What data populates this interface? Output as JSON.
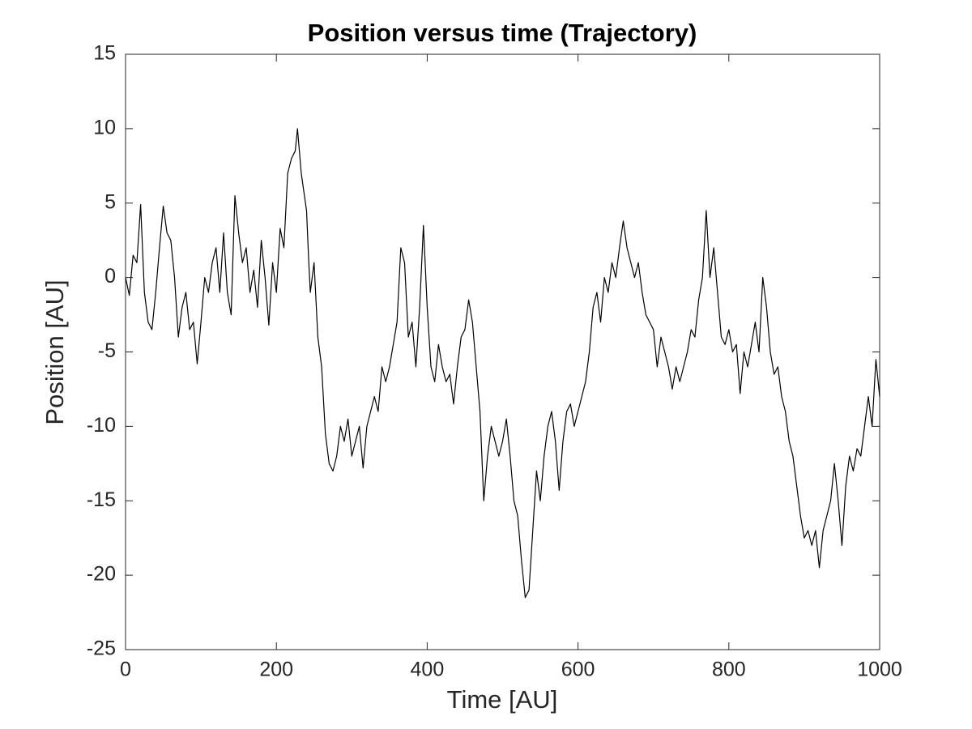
{
  "chart_data": {
    "type": "line",
    "title": "Position versus time (Trajectory)",
    "x_label": "Time [AU]",
    "y_label": "Position [AU]",
    "xlim": [
      0,
      1000
    ],
    "ylim": [
      -25,
      15
    ],
    "xticks": [
      0,
      200,
      400,
      600,
      800,
      1000
    ],
    "yticks": [
      -25,
      -20,
      -15,
      -10,
      -5,
      0,
      5,
      10,
      15
    ],
    "grid": false,
    "series": [
      {
        "color": "#000000",
        "x": [
          0,
          5,
          10,
          15,
          20,
          25,
          30,
          35,
          40,
          45,
          50,
          55,
          60,
          65,
          70,
          75,
          80,
          85,
          90,
          95,
          100,
          105,
          110,
          115,
          120,
          125,
          130,
          135,
          140,
          145,
          150,
          155,
          160,
          165,
          170,
          175,
          180,
          185,
          190,
          195,
          200,
          205,
          210,
          215,
          220,
          225,
          228,
          233,
          240,
          243,
          245,
          250,
          255,
          260,
          265,
          270,
          275,
          280,
          285,
          290,
          295,
          300,
          305,
          310,
          315,
          320,
          325,
          330,
          335,
          340,
          345,
          350,
          355,
          360,
          365,
          370,
          375,
          380,
          385,
          390,
          395,
          400,
          405,
          410,
          415,
          420,
          425,
          430,
          435,
          440,
          445,
          450,
          455,
          460,
          465,
          470,
          475,
          480,
          485,
          490,
          495,
          500,
          505,
          510,
          515,
          520,
          525,
          530,
          535,
          540,
          545,
          550,
          555,
          560,
          565,
          570,
          575,
          580,
          585,
          590,
          595,
          600,
          605,
          610,
          615,
          620,
          625,
          630,
          635,
          640,
          645,
          650,
          655,
          660,
          665,
          670,
          675,
          680,
          685,
          690,
          695,
          700,
          705,
          710,
          715,
          720,
          725,
          730,
          735,
          740,
          745,
          750,
          755,
          760,
          765,
          770,
          775,
          780,
          785,
          790,
          795,
          800,
          805,
          810,
          815,
          820,
          825,
          830,
          835,
          840,
          845,
          850,
          855,
          860,
          865,
          870,
          875,
          880,
          885,
          890,
          895,
          900,
          905,
          910,
          915,
          920,
          925,
          930,
          935,
          940,
          945,
          950,
          955,
          960,
          965,
          970,
          975,
          980,
          985,
          990,
          995,
          1000
        ],
        "values": [
          0,
          -1.2,
          1.5,
          1,
          4.9,
          -1,
          -3,
          -3.5,
          -1,
          2,
          4.8,
          3,
          2.5,
          0,
          -4,
          -2,
          -1,
          -3.5,
          -3,
          -5.8,
          -3,
          0,
          -1,
          1,
          2,
          -1,
          3,
          -1,
          -2.5,
          5.5,
          3,
          1,
          2,
          -1,
          0.5,
          -2,
          2.5,
          0,
          -3.2,
          1,
          -1,
          3.3,
          2,
          7,
          8,
          8.5,
          10,
          7,
          4.5,
          1,
          -1,
          1,
          -4,
          -6,
          -10.5,
          -12.5,
          -13,
          -12,
          -10,
          -11,
          -9.5,
          -12,
          -11,
          -10,
          -12.8,
          -10,
          -9,
          -8,
          -9,
          -6,
          -7,
          -6,
          -4.5,
          -3,
          2,
          1,
          -4,
          -3,
          -6,
          -2,
          3.5,
          -2,
          -6,
          -7,
          -4.5,
          -6,
          -7,
          -6.5,
          -8.5,
          -6,
          -4,
          -3.5,
          -1.5,
          -3,
          -6,
          -9,
          -15,
          -12,
          -10,
          -11,
          -12,
          -11,
          -9.5,
          -12,
          -15,
          -16,
          -19,
          -21.5,
          -21,
          -17,
          -13,
          -15,
          -12,
          -10,
          -9,
          -11,
          -14.3,
          -11,
          -9,
          -8.5,
          -10,
          -9,
          -8,
          -7,
          -5,
          -2,
          -1,
          -3,
          0,
          -1,
          1,
          0,
          2,
          3.8,
          2,
          1,
          0,
          1,
          -1,
          -2.5,
          -3,
          -3.5,
          -6,
          -4,
          -5,
          -6,
          -7.5,
          -6,
          -7,
          -6,
          -5,
          -3.5,
          -4,
          -1.5,
          0,
          4.5,
          0,
          2,
          -1,
          -4,
          -4.5,
          -3.5,
          -5,
          -4.5,
          -7.8,
          -5,
          -6,
          -4.5,
          -3,
          -5,
          0,
          -2,
          -5,
          -6.5,
          -6,
          -8,
          -9,
          -11,
          -12,
          -14,
          -16,
          -17.5,
          -17,
          -18,
          -17,
          -19.5,
          -17,
          -16,
          -15,
          -12.5,
          -15,
          -18,
          -14,
          -12,
          -13,
          -11.5,
          -12,
          -10,
          -8,
          -10,
          -5.5,
          -8
        ]
      }
    ]
  }
}
